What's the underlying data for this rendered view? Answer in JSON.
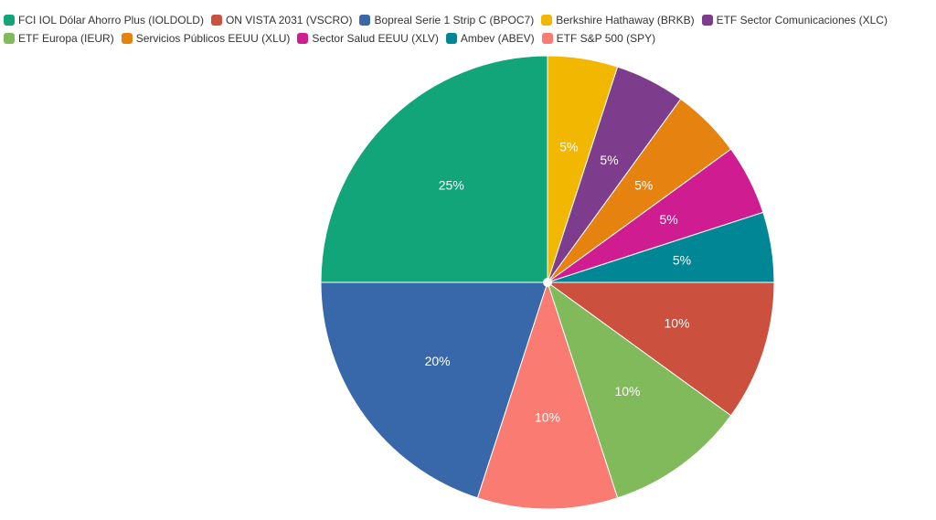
{
  "chart_data": {
    "type": "pie",
    "title": "",
    "legend_position": "top-left",
    "start": "top",
    "direction": "clockwise",
    "slices": [
      {
        "label": "FCI IOL Dólar Ahorro Plus (IOLDOLD)",
        "value": 25,
        "value_label": "25%",
        "color": "#13a57a"
      },
      {
        "label": "ON VISTA 2031 (VSCRO)",
        "value": 10,
        "value_label": "10%",
        "color": "#cc503e"
      },
      {
        "label": "Bopreal Serie 1 Strip C (BPOC7)",
        "value": 20,
        "value_label": "20%",
        "color": "#3868a9"
      },
      {
        "label": "Berkshire Hathaway (BRKB)",
        "value": 5,
        "value_label": "5%",
        "color": "#f2b701"
      },
      {
        "label": "ETF Sector Comunicaciones (XLC)",
        "value": 5,
        "value_label": "5%",
        "color": "#7d3c8c"
      },
      {
        "label": "ETF Europa (IEUR)",
        "value": 10,
        "value_label": "10%",
        "color": "#80ba5a"
      },
      {
        "label": "Servicios Públicos EEUU (XLU)",
        "value": 5,
        "value_label": "5%",
        "color": "#e68310"
      },
      {
        "label": "Sector Salud EEUU (XLV)",
        "value": 5,
        "value_label": "5%",
        "color": "#cf1c90"
      },
      {
        "label": "Ambev (ABEV)",
        "value": 5,
        "value_label": "5%",
        "color": "#008695"
      },
      {
        "label": "ETF S&P 500 (SPY)",
        "value": 10,
        "value_label": "10%",
        "color": "#f97b72"
      }
    ],
    "drawing_order": [
      3,
      4,
      6,
      7,
      8,
      1,
      5,
      9,
      2,
      0
    ]
  }
}
